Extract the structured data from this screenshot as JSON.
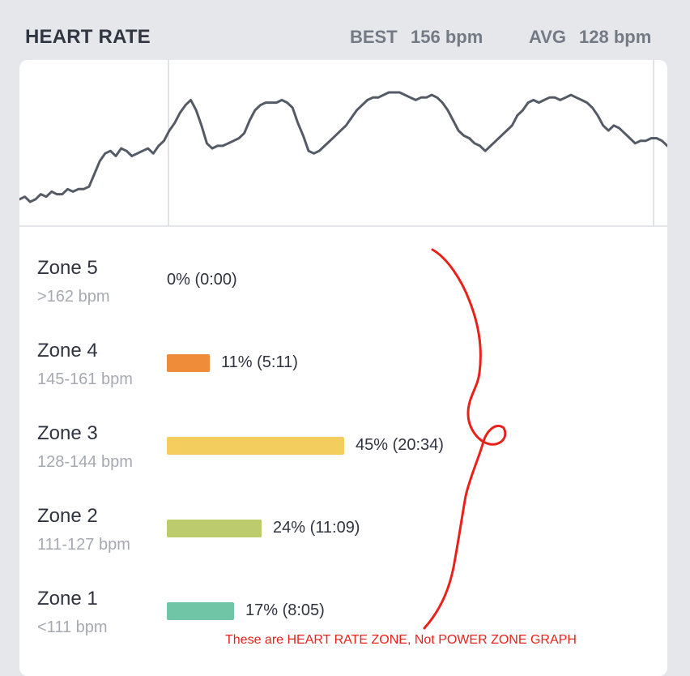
{
  "header": {
    "title": "HEART RATE",
    "best_label": "BEST",
    "best_value": "156 bpm",
    "avg_label": "AVG",
    "avg_value": "128 bpm"
  },
  "zones": [
    {
      "name": "Zone 5",
      "range": ">162 bpm",
      "percent_text": "0% (0:00)",
      "fraction": 0.0,
      "color": "#000000"
    },
    {
      "name": "Zone 4",
      "range": "145-161 bpm",
      "percent_text": "11% (5:11)",
      "fraction": 0.11,
      "color": "#ef8c3a"
    },
    {
      "name": "Zone 3",
      "range": "128-144 bpm",
      "percent_text": "45% (20:34)",
      "fraction": 0.45,
      "color": "#f3ce5f"
    },
    {
      "name": "Zone 2",
      "range": "111-127 bpm",
      "percent_text": "24% (11:09)",
      "fraction": 0.24,
      "color": "#bccb6d"
    },
    {
      "name": "Zone 1",
      "range": "<111 bpm",
      "percent_text": "17% (8:05)",
      "fraction": 0.17,
      "color": "#6fc5a6"
    }
  ],
  "annotation": {
    "text": "These are HEART RATE ZONE, Not POWER ZONE GRAPH",
    "color": "#e8221a"
  },
  "chart_data": {
    "type": "line",
    "series": [
      {
        "values": [
          112,
          113,
          111,
          112,
          114,
          113,
          115,
          114,
          114,
          116,
          115,
          116,
          116,
          117,
          122,
          127,
          130,
          131,
          129,
          132,
          131,
          129,
          130,
          131,
          132,
          130,
          133,
          135,
          139,
          142,
          146,
          149,
          151,
          147,
          141,
          134,
          132,
          133,
          133,
          134,
          135,
          136,
          138,
          143,
          147,
          149,
          150,
          150,
          150,
          151,
          150,
          148,
          142,
          137,
          131,
          130,
          131,
          133,
          135,
          137,
          139,
          141,
          144,
          147,
          149,
          151,
          152,
          152,
          153,
          154,
          154,
          154,
          153,
          152,
          151,
          152,
          152,
          153,
          152,
          150,
          147,
          143,
          139,
          137,
          136,
          134,
          133,
          131,
          133,
          135,
          137,
          139,
          141,
          145,
          147,
          150,
          151,
          150,
          151,
          152,
          152,
          151,
          152,
          153,
          152,
          151,
          150,
          148,
          145,
          141,
          139,
          141,
          140,
          138,
          136,
          134,
          135,
          135,
          136,
          136,
          135,
          133
        ]
      }
    ],
    "color": "#545b67"
  }
}
